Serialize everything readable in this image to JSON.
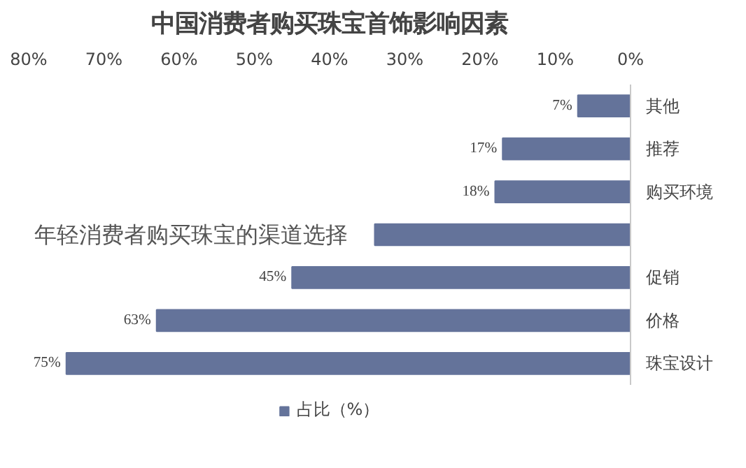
{
  "chart_data": {
    "type": "bar",
    "orientation": "horizontal",
    "title": "中国消费者购买珠宝首饰影响因素",
    "categories": [
      "其他",
      "推荐",
      "购买环境",
      null,
      "促销",
      "价格",
      "珠宝设计"
    ],
    "series": [
      {
        "name": "占比（%）",
        "color": "#64739a",
        "values": [
          7,
          17,
          18,
          34,
          45,
          63,
          75
        ],
        "value_labels": [
          "7%",
          "17%",
          "18%",
          null,
          "45%",
          "63%",
          "75%"
        ]
      }
    ],
    "xlim": [
      80,
      0
    ],
    "xticks": [
      {
        "value": 0,
        "label": "0%"
      },
      {
        "value": 10,
        "label": "10%"
      },
      {
        "value": 20,
        "label": "20%"
      },
      {
        "value": 30,
        "label": "30%"
      },
      {
        "value": 40,
        "label": "40%"
      },
      {
        "value": 50,
        "label": "50%"
      },
      {
        "value": 60,
        "label": "60%"
      },
      {
        "value": 70,
        "label": "70%"
      },
      {
        "value": 80,
        "label": "80%"
      }
    ],
    "legend": "bottom",
    "annotations": [
      "年轻消费者购买珠宝的渠道选择"
    ]
  }
}
